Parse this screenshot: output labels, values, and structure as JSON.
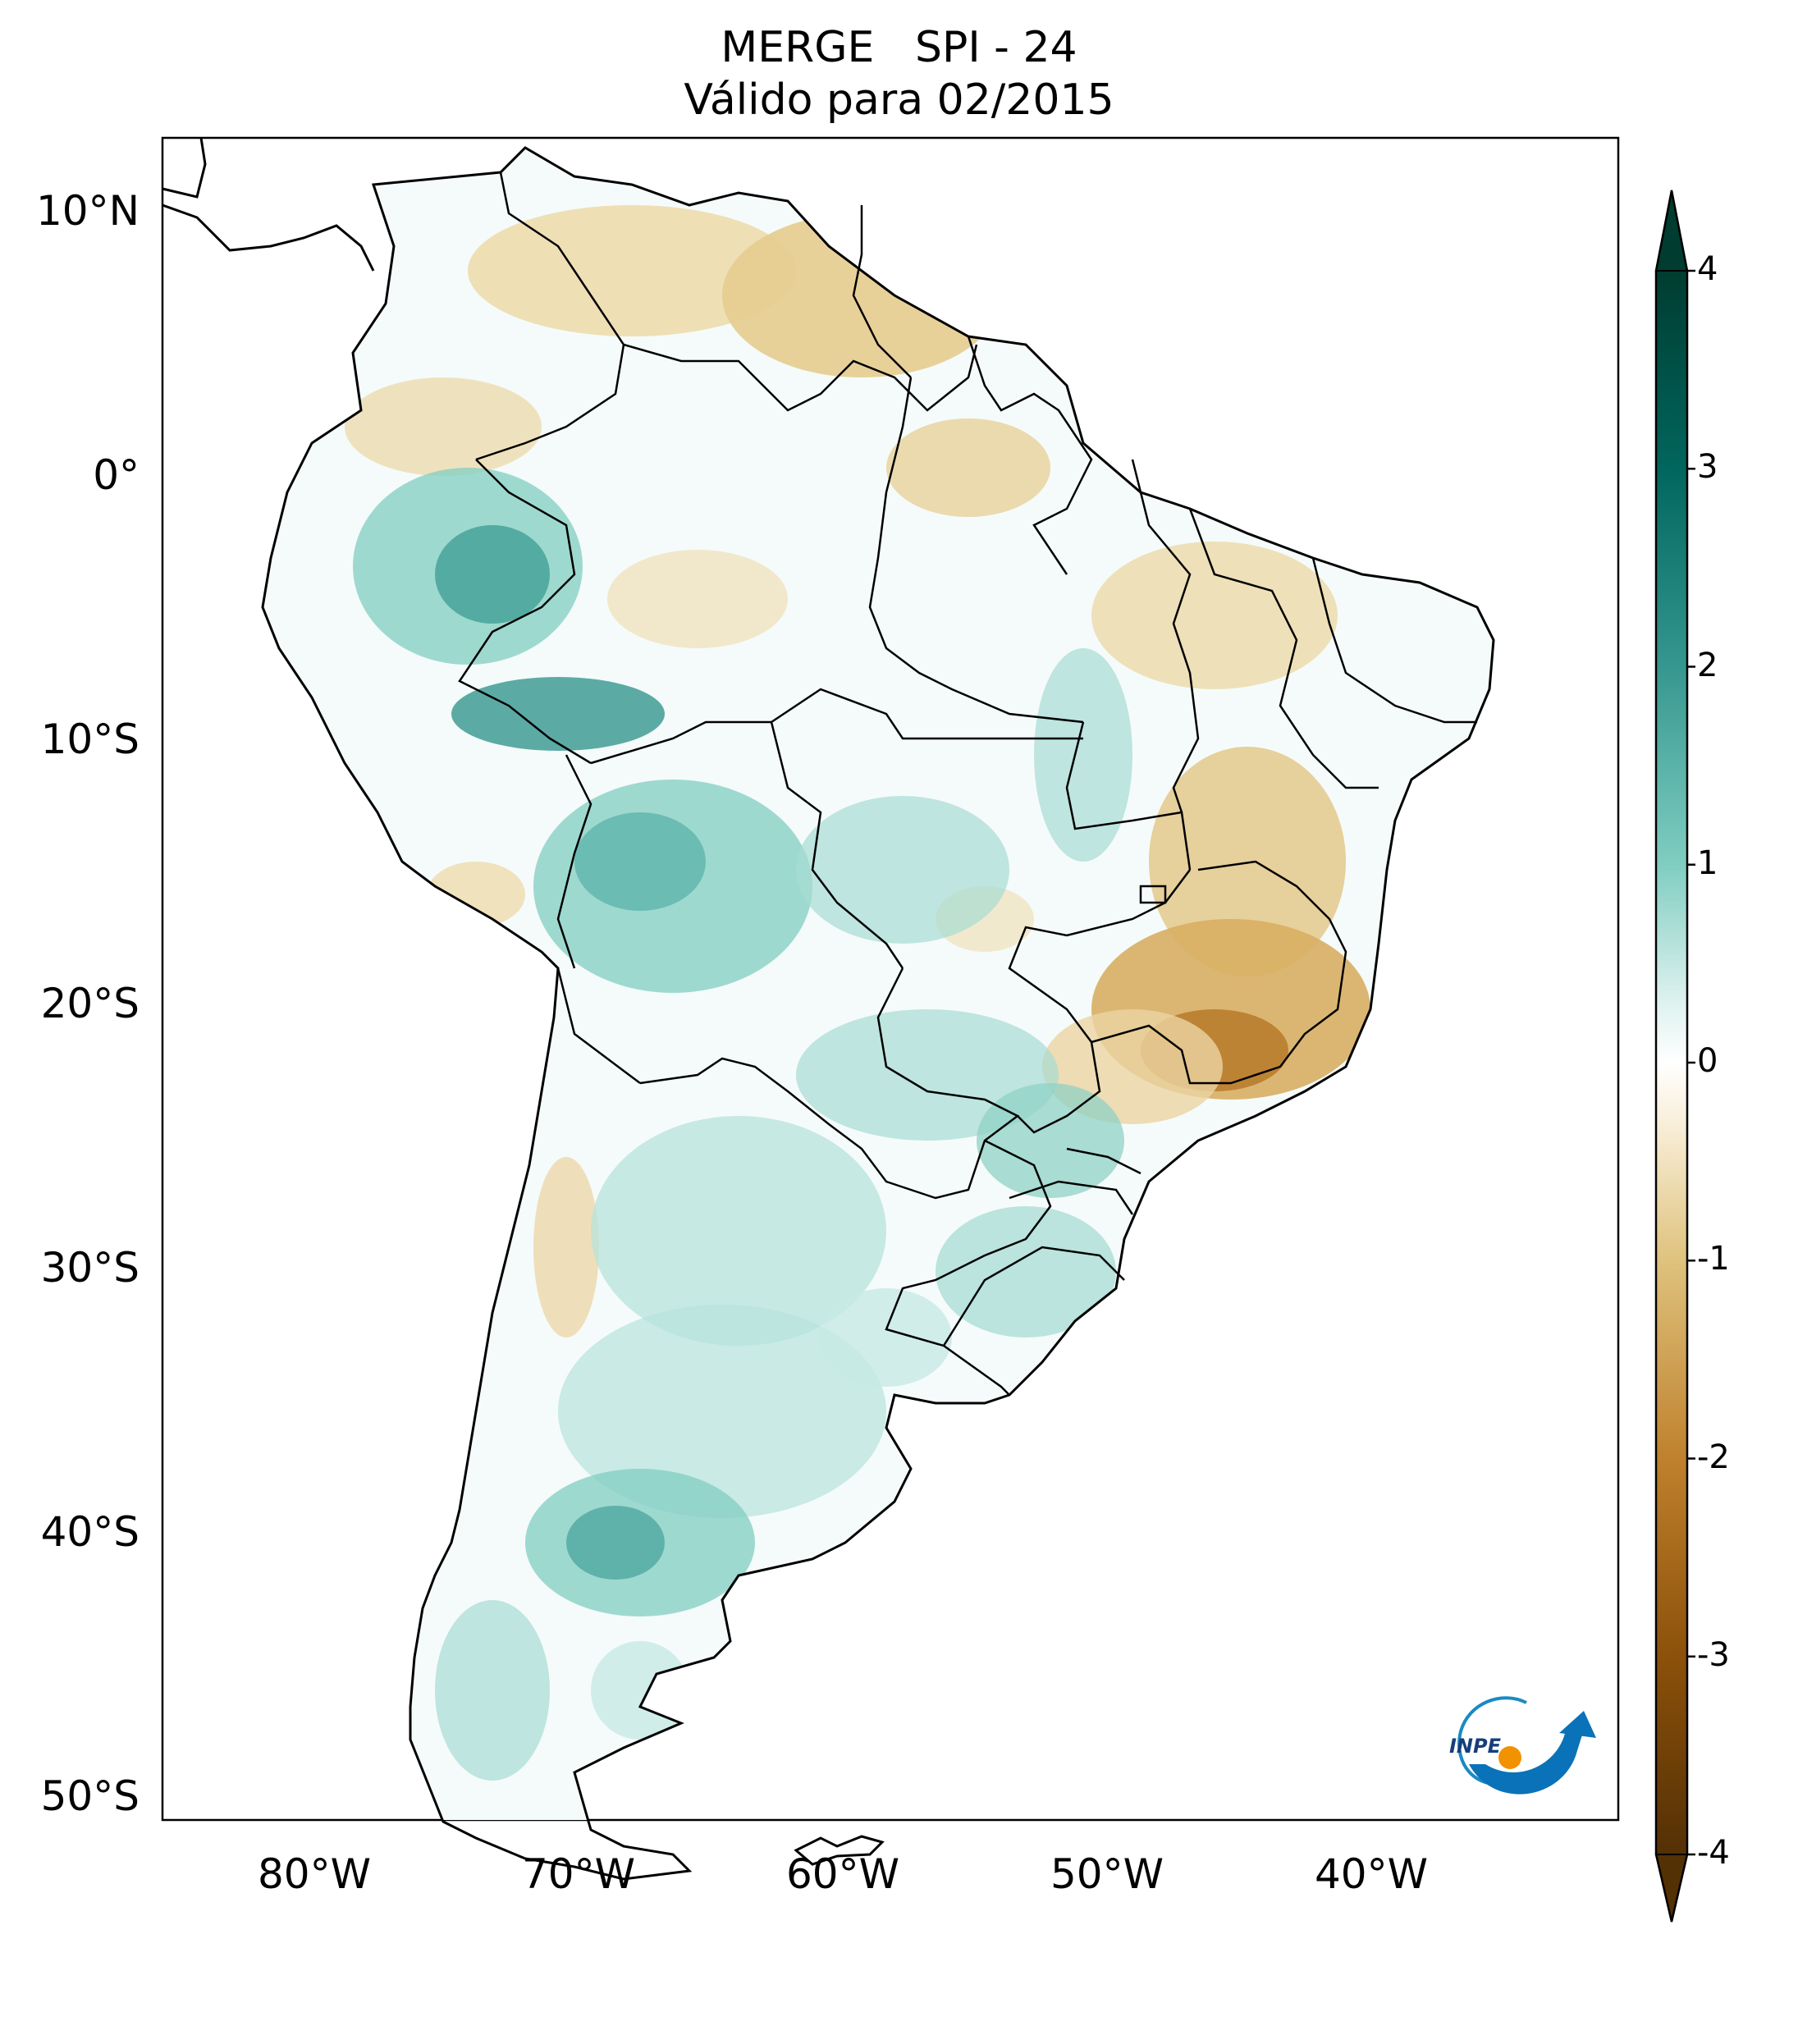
{
  "title": {
    "line1": "MERGE   SPI - 24",
    "line2": "Válido para 02/2015"
  },
  "map": {
    "region": "South America",
    "lat_ticks": [
      "10°N",
      "0°",
      "10°S",
      "20°S",
      "30°S",
      "40°S",
      "50°S"
    ],
    "lon_ticks": [
      "80°W",
      "70°W",
      "60°W",
      "50°W",
      "40°W"
    ]
  },
  "colorbar": {
    "ticks": [
      "4",
      "3",
      "2",
      "1",
      "0",
      "-1",
      "-2",
      "-3",
      "-4"
    ],
    "min": -4,
    "max": 4,
    "colors": {
      "max": "#003c30",
      "high": "#01665e",
      "mid_high": "#35978f",
      "low_high": "#80cdc1",
      "pale_high": "#c7eae5",
      "zero": "#ffffff",
      "pale_low": "#f6e8c3",
      "low_low": "#dfc27d",
      "mid_low": "#bf812d",
      "low": "#8c510a",
      "min": "#543005"
    }
  },
  "logo": {
    "text": "INPE"
  }
}
